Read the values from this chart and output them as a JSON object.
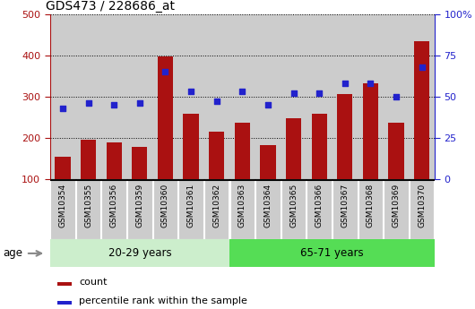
{
  "title": "GDS473 / 228686_at",
  "samples": [
    "GSM10354",
    "GSM10355",
    "GSM10356",
    "GSM10359",
    "GSM10360",
    "GSM10361",
    "GSM10362",
    "GSM10363",
    "GSM10364",
    "GSM10365",
    "GSM10366",
    "GSM10367",
    "GSM10368",
    "GSM10369",
    "GSM10370"
  ],
  "counts": [
    155,
    195,
    188,
    178,
    398,
    258,
    215,
    237,
    182,
    248,
    258,
    307,
    332,
    237,
    435
  ],
  "percentiles": [
    43,
    46,
    45,
    46,
    65,
    53,
    47,
    53,
    45,
    52,
    52,
    58,
    58,
    50,
    68
  ],
  "group1_label": "20-29 years",
  "group2_label": "65-71 years",
  "group1_count": 7,
  "group2_count": 8,
  "bar_color": "#AA1111",
  "dot_color": "#2222CC",
  "group1_bg": "#CCEECC",
  "group2_bg": "#55DD55",
  "tick_bg": "#CCCCCC",
  "plot_bg": "#FFFFFF",
  "ylim_left": [
    100,
    500
  ],
  "ylim_right": [
    0,
    100
  ],
  "yticks_left": [
    100,
    200,
    300,
    400,
    500
  ],
  "yticks_right": [
    0,
    25,
    50,
    75,
    100
  ],
  "legend_count_label": "count",
  "legend_pct_label": "percentile rank within the sample"
}
